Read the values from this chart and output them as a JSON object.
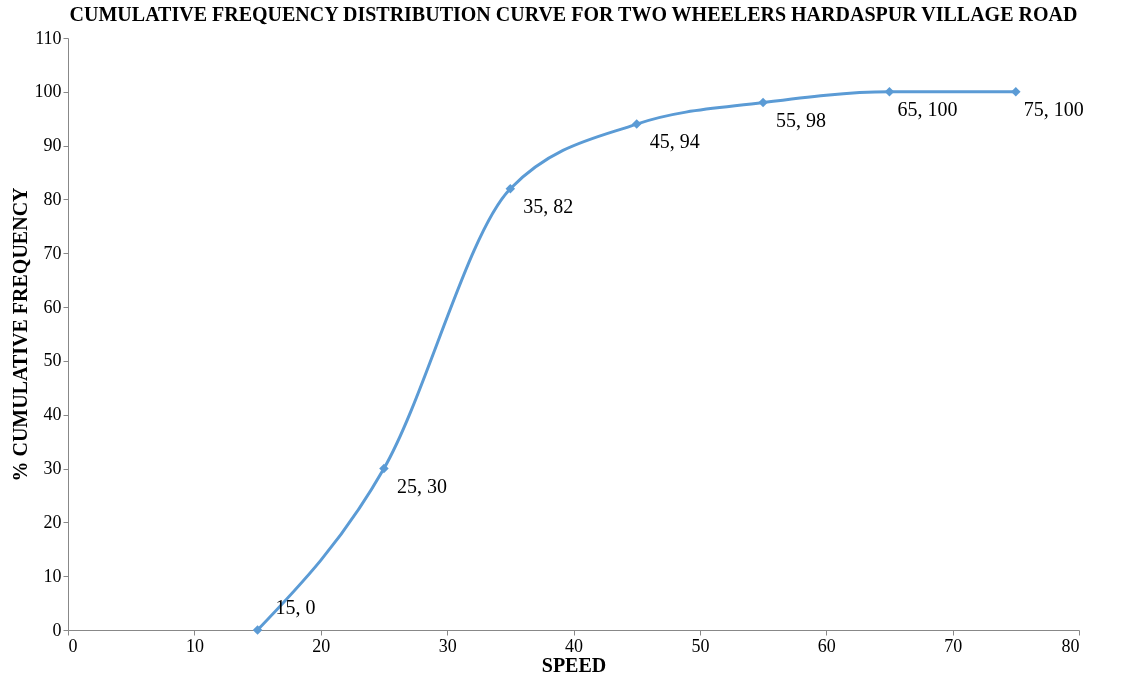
{
  "chart_data": {
    "type": "line",
    "title": "CUMULATIVE FREQUENCY DISTRIBUTION CURVE FOR TWO WHEELERS HARDASPUR VILLAGE ROAD",
    "xlabel": "SPEED",
    "ylabel": "% CUMULATIVE FREQUENCY",
    "x": [
      15,
      25,
      35,
      45,
      55,
      65,
      75
    ],
    "series": [
      {
        "color": "#5b9bd5",
        "values": [
          0,
          30,
          82,
          94,
          98,
          100,
          100
        ],
        "value_labels": [
          "15, 0",
          "25, 30",
          "35, 82",
          "45, 94",
          "55, 98",
          "65, 100",
          "75, 100"
        ]
      }
    ],
    "xlim": [
      0,
      80
    ],
    "xticks": [
      0,
      10,
      20,
      30,
      40,
      50,
      60,
      70,
      80
    ],
    "ylim": [
      0,
      110
    ],
    "yticks": [
      0,
      10,
      20,
      30,
      40,
      50,
      60,
      70,
      80,
      90,
      100,
      110
    ],
    "grid": false,
    "marker": "diamond",
    "line_style": "solid"
  }
}
